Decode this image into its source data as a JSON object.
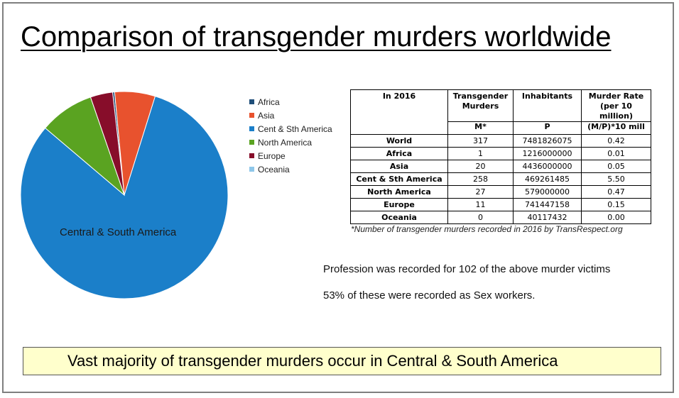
{
  "title": "Comparison of transgender murders worldwide",
  "chart_data": {
    "type": "pie",
    "slices": [
      {
        "label": "Africa",
        "value": 1,
        "color": "#1f4e79"
      },
      {
        "label": "Asia",
        "value": 20,
        "color": "#e8522e"
      },
      {
        "label": "Cent & Sth America",
        "value": 258,
        "color": "#1b7fc9"
      },
      {
        "label": "North America",
        "value": 27,
        "color": "#5aa321"
      },
      {
        "label": "Europe",
        "value": 11,
        "color": "#870d2a"
      },
      {
        "label": "Oceania",
        "value": 0,
        "color": "#8fc7ea"
      }
    ],
    "start_angle_deg": -6.5,
    "data_label": "Central & South America",
    "legend_position": "right"
  },
  "table": {
    "headers": [
      "In 2016",
      "Transgender Murders",
      "Inhabitants",
      "Murder Rate (per 10 million)"
    ],
    "subheaders": [
      "",
      "M*",
      "P",
      "(M/P)*10 mill"
    ],
    "rows": [
      [
        "World",
        "317",
        "7481826075",
        "0.42"
      ],
      [
        "Africa",
        "1",
        "1216000000",
        "0.01"
      ],
      [
        "Asia",
        "20",
        "4436000000",
        "0.05"
      ],
      [
        "Cent & Sth America",
        "258",
        "469261485",
        "5.50"
      ],
      [
        "North America",
        "27",
        "579000000",
        "0.47"
      ],
      [
        "Europe",
        "11",
        "741447158",
        "0.15"
      ],
      [
        "Oceania",
        "0",
        "40117432",
        "0.00"
      ]
    ]
  },
  "footnote": "*Number of transgender murders recorded in 2016 by TransRespect.org",
  "notes": [
    "Profession was recorded for 102 of the above murder victims",
    "53% of these were recorded as Sex workers."
  ],
  "banner": "Vast majority of transgender murders occur in Central & South America"
}
